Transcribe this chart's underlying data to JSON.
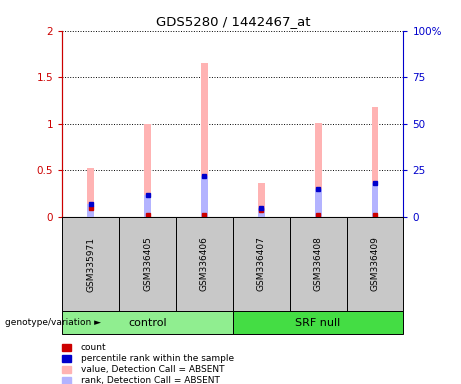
{
  "title": "GDS5280 / 1442467_at",
  "samples": [
    "GSM335971",
    "GSM336405",
    "GSM336406",
    "GSM336407",
    "GSM336408",
    "GSM336409"
  ],
  "control_indices": [
    0,
    1,
    2
  ],
  "srfnull_indices": [
    3,
    4,
    5
  ],
  "control_label": "control",
  "srfnull_label": "SRF null",
  "control_color": "#90ee90",
  "srfnull_color": "#44dd44",
  "pink_bar_heights": [
    0.53,
    1.0,
    1.65,
    0.37,
    1.01,
    1.18
  ],
  "blue_bar_heights": [
    0.14,
    0.24,
    0.44,
    0.1,
    0.3,
    0.37
  ],
  "red_dot_values": [
    0.1,
    0.02,
    0.02,
    0.07,
    0.02,
    0.02
  ],
  "ylim_left": [
    0,
    2
  ],
  "ylim_right": [
    0,
    100
  ],
  "yticks_left": [
    0,
    0.5,
    1.0,
    1.5,
    2.0
  ],
  "yticks_right": [
    0,
    25,
    50,
    75,
    100
  ],
  "ytick_labels_left": [
    "0",
    "0.5",
    "1",
    "1.5",
    "2"
  ],
  "ytick_labels_right": [
    "0",
    "25",
    "50",
    "75",
    "100%"
  ],
  "left_axis_color": "#cc0000",
  "right_axis_color": "#0000cc",
  "bar_width": 0.12,
  "pink_color": "#ffb3b3",
  "blue_color": "#b3b3ff",
  "red_color": "#cc0000",
  "blue_marker_color": "#0000cc",
  "sample_box_color": "#c8c8c8",
  "geno_label": "genotype/variation",
  "legend_items": [
    {
      "label": "count",
      "color": "#cc0000",
      "marker": "s"
    },
    {
      "label": "percentile rank within the sample",
      "color": "#0000cc",
      "marker": "s"
    },
    {
      "label": "value, Detection Call = ABSENT",
      "color": "#ffb3b3",
      "marker": "s"
    },
    {
      "label": "rank, Detection Call = ABSENT",
      "color": "#b3b3ff",
      "marker": "s"
    }
  ]
}
